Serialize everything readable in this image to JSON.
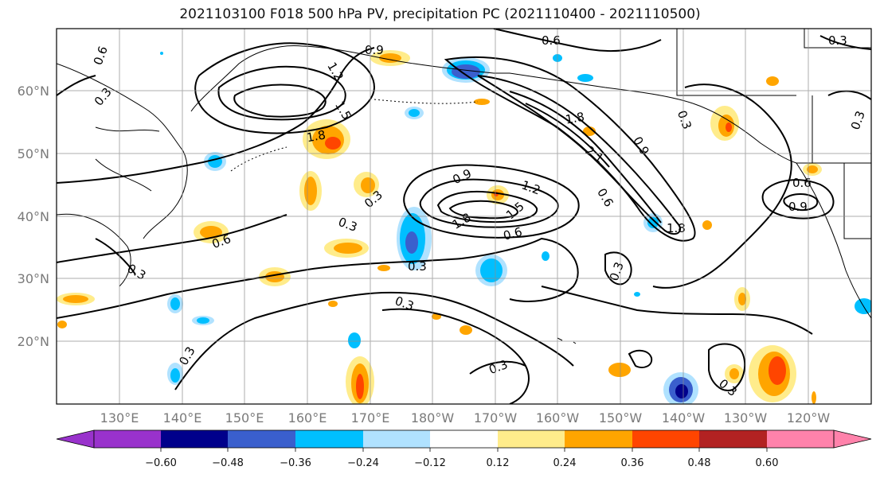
{
  "title": "2021103100 F018 500 hPa PV, precipitation PC (2021110400 - 2021110500)",
  "lat_labels": [
    "60°N",
    "50°N",
    "40°N",
    "30°N",
    "20°N"
  ],
  "lon_labels": [
    "130°E",
    "140°E",
    "150°E",
    "160°E",
    "170°E",
    "180°W",
    "170°W",
    "160°W",
    "150°W",
    "140°W",
    "130°W",
    "120°W"
  ],
  "colorbar": {
    "tick_labels": [
      "−0.60",
      "−0.48",
      "−0.36",
      "−0.24",
      "−0.12",
      "0.12",
      "0.24",
      "0.36",
      "0.48",
      "0.60"
    ],
    "colors": [
      "#9932cc",
      "#00008b",
      "#3a5fcd",
      "#00bfff",
      "#b0e2ff",
      "#ffffff",
      "#ffec8b",
      "#ffa500",
      "#ff4500",
      "#b22222",
      "#ff82ab"
    ]
  },
  "contour_labels": {
    "c1": "0.9",
    "c2": "0.6",
    "c3": "0.3",
    "c4": "1.2",
    "c5": "1.5",
    "c6": "0.6",
    "c7": "0.3",
    "c8": "1.8",
    "c9": "0.9",
    "c10": "1.2",
    "c11": "1.5",
    "c12": "1.8",
    "c13": "0.3",
    "c14": "0.6",
    "c15": "0.3",
    "c16": "0.3",
    "c17": "1.8",
    "c18": "2.1",
    "c19": "0.9",
    "c20": "0.6",
    "c21": "1.8",
    "c22": "0.3",
    "c23": "0.6",
    "c24": "0.9",
    "c25": "0.3",
    "c26": "0.3",
    "c27": "0.3",
    "c28": "0.3",
    "c29": "0.6",
    "c30": "0.3",
    "c31": "0.3",
    "c32": "0.3"
  }
}
